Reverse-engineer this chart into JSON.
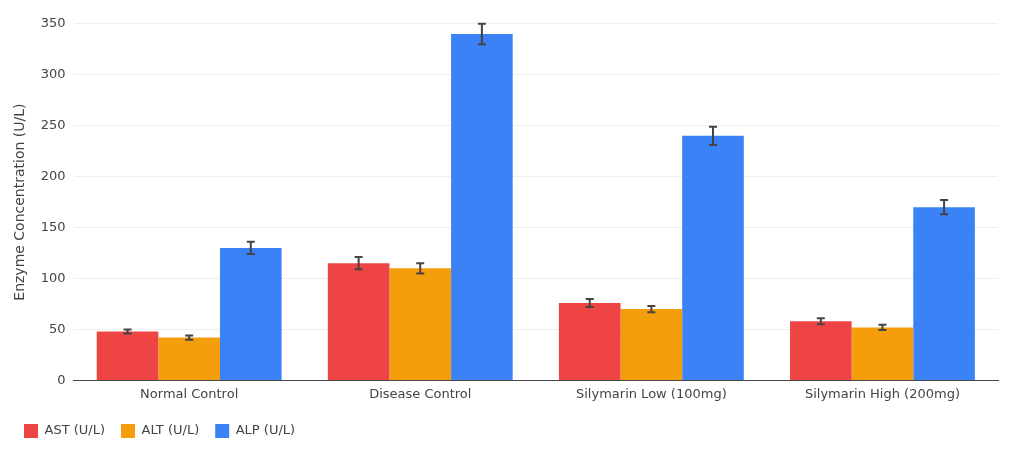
{
  "chart_data": {
    "type": "bar",
    "ylabel": "Enzyme Concentration (U/L)",
    "categories": [
      "Normal Control",
      "Disease Control",
      "Silymarin Low (100mg)",
      "Silymarin High (200mg)"
    ],
    "series": [
      {
        "name": "AST (U/L)",
        "color": "#ef4444",
        "values": [
          48,
          115,
          76,
          58
        ],
        "errors": [
          2,
          6,
          4,
          3
        ]
      },
      {
        "name": "ALT (U/L)",
        "color": "#f59e0b",
        "values": [
          42,
          110,
          70,
          52
        ],
        "errors": [
          2,
          5,
          3,
          2.5
        ]
      },
      {
        "name": "ALP (U/L)",
        "color": "#3b82f6",
        "values": [
          130,
          340,
          240,
          170
        ],
        "errors": [
          6,
          10,
          9,
          7
        ]
      }
    ],
    "ylim": [
      0,
      350
    ],
    "yticks": [
      0,
      50,
      100,
      150,
      200,
      250,
      300,
      350
    ],
    "grid": "y",
    "legend": "bottom left"
  }
}
